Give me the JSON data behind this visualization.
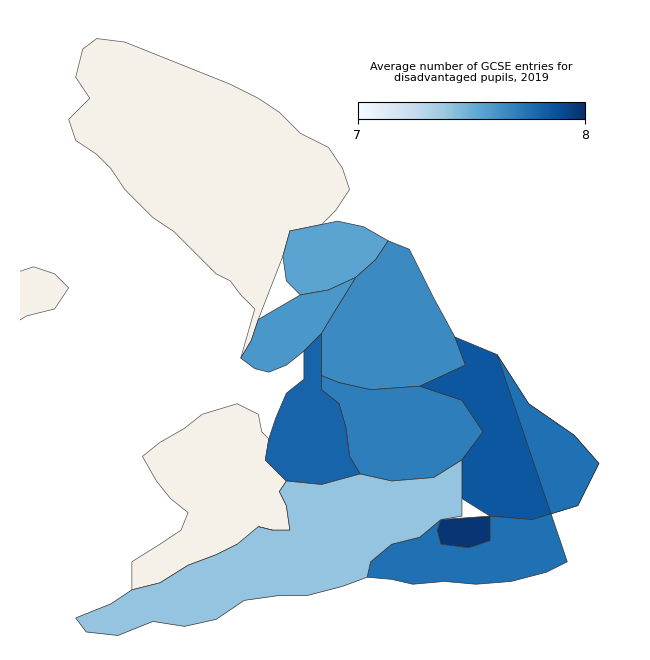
{
  "colorbar_label": "Average number of GCSE entries for\ndisadvantaged pupils, 2019",
  "colorbar_vmin": 7,
  "colorbar_vmax": 8,
  "colormap": "Blues",
  "background_color": "#ffffff",
  "regions": {
    "North East": 7.55,
    "North West": 7.6,
    "Yorkshire and The Humber": 7.65,
    "East Midlands": 7.7,
    "West Midlands": 7.8,
    "East of England": 7.85,
    "London": 7.98,
    "South East": 7.75,
    "South West": 7.4
  },
  "region_values": {
    "North East": 7.55,
    "North West": 7.6,
    "Yorkshire and The Humber": 7.65,
    "East Midlands": 7.7,
    "West Midlands": 7.8,
    "East of England": 7.85,
    "London": 7.98,
    "South East": 7.75,
    "South West": 7.4
  },
  "fig_width": 6.5,
  "fig_height": 6.6,
  "dpi": 100
}
